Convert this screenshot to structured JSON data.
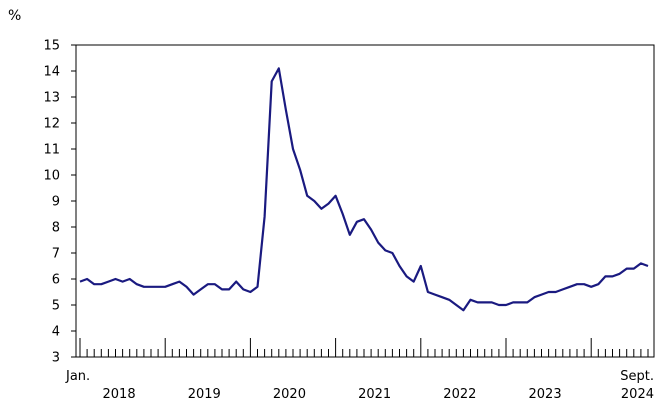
{
  "chart_data": {
    "type": "line",
    "ylabel": "%",
    "ylim": [
      3,
      15
    ],
    "yticks": [
      3,
      4,
      5,
      6,
      7,
      8,
      9,
      10,
      11,
      12,
      13,
      14,
      15
    ],
    "grid": false,
    "legend": "none",
    "line_color": "#1a1a80",
    "start_label": "Jan.",
    "end_label": "Sept.",
    "year_labels": [
      "2018",
      "2019",
      "2020",
      "2021",
      "2022",
      "2023",
      "2024"
    ],
    "series": [
      {
        "x_start": "2018-01",
        "x_end": "2024-09",
        "values": [
          5.9,
          6.0,
          5.8,
          5.8,
          5.9,
          6.0,
          5.9,
          6.0,
          5.8,
          5.7,
          5.7,
          5.7,
          5.7,
          5.8,
          5.9,
          5.7,
          5.4,
          5.6,
          5.8,
          5.8,
          5.6,
          5.6,
          5.9,
          5.6,
          5.5,
          5.7,
          8.4,
          13.6,
          14.1,
          12.5,
          11.0,
          10.2,
          9.2,
          9.0,
          8.7,
          8.9,
          9.2,
          8.5,
          7.7,
          8.2,
          8.3,
          7.9,
          7.4,
          7.1,
          7.0,
          6.5,
          6.1,
          5.9,
          6.5,
          5.5,
          5.4,
          5.3,
          5.2,
          5.0,
          4.8,
          5.2,
          5.1,
          5.1,
          5.1,
          5.0,
          5.0,
          5.1,
          5.1,
          5.1,
          5.3,
          5.4,
          5.5,
          5.5,
          5.6,
          5.7,
          5.8,
          5.8,
          5.7,
          5.8,
          6.1,
          6.1,
          6.2,
          6.4,
          6.4,
          6.6,
          6.5
        ]
      }
    ]
  }
}
